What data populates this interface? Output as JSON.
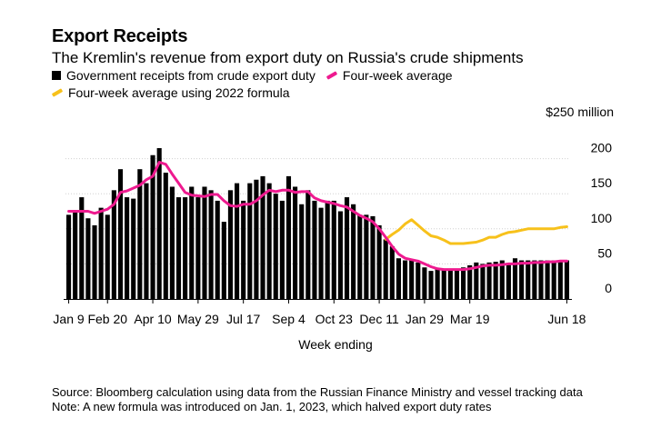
{
  "title": "Export Receipts",
  "subtitle": "The Kremlin's revenue from export duty on Russia's crude shipments",
  "source": "Source: Bloomberg calculation using data from the Russian Finance Ministry and vessel tracking data",
  "note": "Note: A new formula was introduced on Jan. 1, 2023, which halved export duty rates",
  "chart_data": {
    "type": "bar",
    "xlabel": "Week ending",
    "ylabel": "",
    "ylim": [
      0,
      250
    ],
    "y_unit_label": "$250 million",
    "y_ticks": [
      0,
      50,
      100,
      150,
      200
    ],
    "x_tick_labels": [
      "Jan 9",
      "Feb 20",
      "Apr 10",
      "May 29",
      "Jul 17",
      "Sep 4",
      "Oct 23",
      "Dec 11",
      "Jan 29",
      "Mar 19",
      "Jun 18"
    ],
    "x_tick_index": [
      0,
      6,
      13,
      20,
      27,
      34,
      41,
      48,
      55,
      62,
      77
    ],
    "grid": true,
    "legend_position": "top",
    "colors": {
      "bars": "#000000",
      "avg": "#ee1a8f",
      "avg2022": "#f7c11b"
    },
    "series": [
      {
        "name": "Government receipts from crude export duty",
        "type": "bar",
        "values": [
          120,
          125,
          145,
          115,
          105,
          130,
          120,
          155,
          185,
          145,
          143,
          185,
          165,
          205,
          215,
          180,
          160,
          145,
          145,
          160,
          145,
          160,
          155,
          140,
          110,
          155,
          165,
          140,
          165,
          170,
          175,
          165,
          150,
          140,
          175,
          160,
          135,
          155,
          140,
          130,
          140,
          140,
          125,
          145,
          135,
          120,
          120,
          118,
          105,
          85,
          75,
          58,
          55,
          55,
          52,
          45,
          40,
          43,
          42,
          42,
          43,
          45,
          48,
          52,
          50,
          52,
          53,
          55,
          50,
          58,
          55,
          55,
          55,
          55,
          55,
          55,
          55,
          55
        ]
      },
      {
        "name": "Four-week average",
        "type": "line",
        "values": [
          125,
          125,
          125,
          125,
          122,
          125,
          128,
          135,
          152,
          154,
          158,
          162,
          170,
          175,
          195,
          192,
          178,
          165,
          152,
          148,
          147,
          146,
          149,
          149,
          140,
          133,
          132,
          135,
          135,
          140,
          148,
          155,
          153,
          155,
          155,
          152,
          153,
          153,
          144,
          140,
          138,
          136,
          133,
          131,
          125,
          119,
          115,
          110,
          100,
          88,
          75,
          64,
          58,
          56,
          54,
          50,
          46,
          43,
          42,
          42,
          42,
          42,
          43,
          45,
          47,
          48,
          48,
          49,
          50,
          50,
          51,
          51,
          52,
          52,
          53,
          53,
          54,
          54
        ]
      },
      {
        "name": "Four-week average using 2022 formula",
        "type": "line",
        "start_index": 49,
        "values": [
          85,
          92,
          98,
          107,
          113,
          105,
          97,
          90,
          88,
          84,
          79,
          79,
          79,
          80,
          81,
          84,
          88,
          88,
          92,
          95,
          96,
          98,
          100,
          100,
          100,
          100,
          100,
          102,
          103
        ]
      }
    ]
  }
}
